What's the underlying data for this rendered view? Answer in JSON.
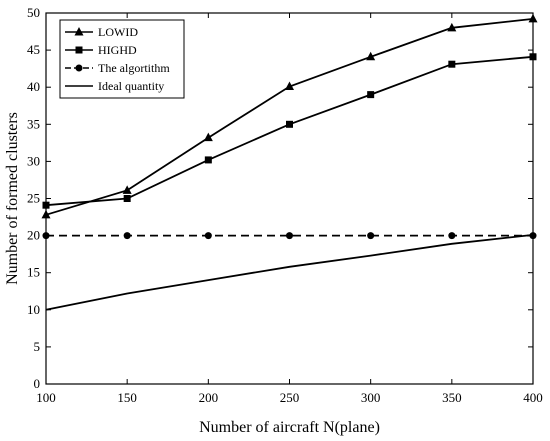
{
  "chart_data": {
    "type": "line",
    "title": "",
    "xlabel": "Number of aircraft N(plane)",
    "ylabel": "Number of formed clusters",
    "xlim": [
      100,
      400
    ],
    "ylim": [
      0,
      50
    ],
    "xticks": [
      100,
      150,
      200,
      250,
      300,
      350,
      400
    ],
    "yticks": [
      0,
      5,
      10,
      15,
      20,
      25,
      30,
      35,
      40,
      45,
      50
    ],
    "x": [
      100,
      150,
      200,
      250,
      300,
      350,
      400
    ],
    "grid": false,
    "legend_position": "top-left",
    "series": [
      {
        "name": "LOWID",
        "marker": "triangle",
        "dash": "solid",
        "values": [
          22.8,
          26.1,
          33.2,
          40.1,
          44.1,
          48.0,
          49.2
        ]
      },
      {
        "name": "HIGHD",
        "marker": "square",
        "dash": "solid",
        "values": [
          24.1,
          25.0,
          30.2,
          35.0,
          39.0,
          43.1,
          44.1
        ]
      },
      {
        "name": "The algortithm",
        "marker": "circle",
        "dash": "dashed",
        "values": [
          20.0,
          20.0,
          20.0,
          20.0,
          20.0,
          20.0,
          20.0
        ]
      },
      {
        "name": "Ideal quantity",
        "marker": "none",
        "dash": "solid",
        "values": [
          10.0,
          12.2,
          14.0,
          15.8,
          17.3,
          18.9,
          20.1
        ]
      }
    ]
  }
}
